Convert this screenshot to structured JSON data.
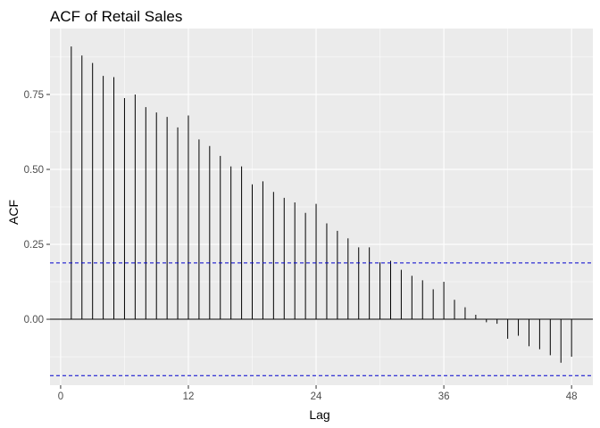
{
  "chart_data": {
    "type": "bar",
    "title": "ACF of Retail Sales",
    "xlabel": "Lag",
    "ylabel": "ACF",
    "x": [
      1,
      2,
      3,
      4,
      5,
      6,
      7,
      8,
      9,
      10,
      11,
      12,
      13,
      14,
      15,
      16,
      17,
      18,
      19,
      20,
      21,
      22,
      23,
      24,
      25,
      26,
      27,
      28,
      29,
      30,
      31,
      32,
      33,
      34,
      35,
      36,
      37,
      38,
      39,
      40,
      41,
      42,
      43,
      44,
      45,
      46,
      47,
      48
    ],
    "values": [
      0.91,
      0.88,
      0.855,
      0.812,
      0.808,
      0.738,
      0.75,
      0.708,
      0.69,
      0.675,
      0.64,
      0.68,
      0.6,
      0.578,
      0.545,
      0.51,
      0.51,
      0.45,
      0.46,
      0.425,
      0.405,
      0.39,
      0.355,
      0.385,
      0.32,
      0.295,
      0.27,
      0.24,
      0.24,
      0.19,
      0.195,
      0.165,
      0.145,
      0.13,
      0.1,
      0.125,
      0.065,
      0.04,
      0.015,
      -0.01,
      -0.015,
      -0.065,
      -0.055,
      -0.09,
      -0.1,
      -0.12,
      -0.145,
      -0.125
    ],
    "confidence_bound": 0.188,
    "xlim": [
      -1,
      50
    ],
    "ylim": [
      -0.22,
      0.97
    ],
    "x_ticks": [
      0,
      12,
      24,
      36,
      48
    ],
    "y_ticks": [
      0,
      0.25,
      0.5,
      0.75
    ],
    "x_tick_labels": [
      "0",
      "12",
      "24",
      "36",
      "48"
    ],
    "y_tick_labels": [
      "0.00",
      "0.25",
      "0.50",
      "0.75"
    ],
    "grid": true,
    "colors": {
      "panel_background": "#ebebeb",
      "grid_major": "#ffffff",
      "spike": "#000000",
      "confidence_line": "#0000cd"
    }
  }
}
